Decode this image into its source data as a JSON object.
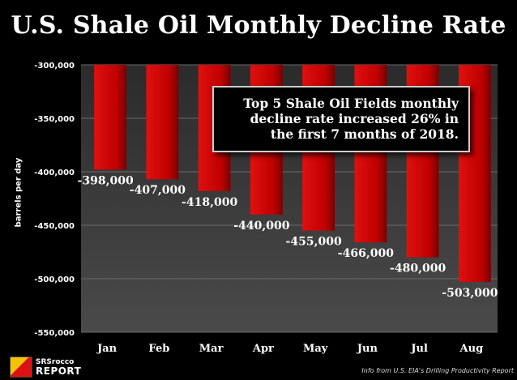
{
  "chart_data": {
    "type": "bar",
    "title": "U.S. Shale Oil Monthly Decline Rate",
    "ylabel": "barrels per day",
    "xlabel": "",
    "categories": [
      "Jan",
      "Feb",
      "Mar",
      "Apr",
      "May",
      "Jun",
      "Jul",
      "Aug"
    ],
    "values": [
      -398000,
      -407000,
      -418000,
      -440000,
      -455000,
      -466000,
      -480000,
      -503000
    ],
    "data_labels": [
      "-398,000",
      "-407,000",
      "-418,000",
      "-440,000",
      "-455,000",
      "-466,000",
      "-480,000",
      "-503,000"
    ],
    "yticks": [
      -300000,
      -350000,
      -400000,
      -450000,
      -500000,
      -550000
    ],
    "ytick_labels": [
      "-300,000",
      "-350,000",
      "-400,000",
      "-450,000",
      "-500,000",
      "-550,000"
    ],
    "ylim": [
      -550000,
      -300000
    ],
    "bars_hang_from_top": true,
    "grid": true,
    "legend": "none",
    "colors": {
      "bar": "#cc0000",
      "bar_dark": "#7a0000",
      "plot_bg": "#3a3a3a",
      "grid": "#6a6a6a",
      "page_bg": "#000000"
    },
    "annotation": "Top 5 Shale Oil Fields monthly decline rate increased 26% in the first 7 months of 2018."
  },
  "note_lines": [
    "Top 5 Shale Oil Fields monthly",
    "decline rate increased 26% in",
    "the first 7 months of 2018."
  ],
  "logo": {
    "line1": "SRSrocco",
    "line2": "REPORT"
  },
  "source": "Info from U.S. EIA's Drilling Productivity Report"
}
